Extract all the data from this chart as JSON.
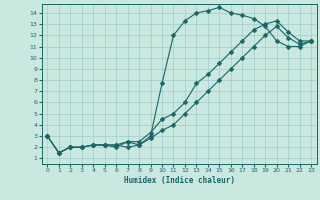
{
  "xlabel": "Humidex (Indice chaleur)",
  "x_ticks": [
    0,
    1,
    2,
    3,
    4,
    5,
    6,
    7,
    8,
    9,
    10,
    11,
    12,
    13,
    14,
    15,
    16,
    17,
    18,
    19,
    20,
    21,
    22,
    23
  ],
  "y_ticks": [
    1,
    2,
    3,
    4,
    5,
    6,
    7,
    8,
    9,
    10,
    11,
    12,
    13,
    14
  ],
  "xlim": [
    -0.5,
    23.5
  ],
  "ylim": [
    0.5,
    14.8
  ],
  "bg_color": "#c8e8e0",
  "grid_color": "#a0cccc",
  "line_color": "#1a6666",
  "curve1_x": [
    0,
    1,
    2,
    3,
    4,
    5,
    6,
    7,
    8,
    9,
    10,
    11,
    12,
    13,
    14,
    15,
    16,
    17,
    18,
    19,
    20,
    21,
    22,
    23
  ],
  "curve1_y": [
    3.0,
    1.5,
    2.0,
    2.0,
    2.2,
    2.2,
    2.0,
    2.5,
    2.2,
    3.0,
    7.7,
    12.0,
    13.3,
    14.0,
    14.2,
    14.5,
    14.0,
    13.8,
    13.5,
    12.8,
    11.5,
    11.0,
    11.0,
    11.5
  ],
  "curve2_x": [
    0,
    1,
    2,
    3,
    4,
    5,
    6,
    7,
    8,
    9,
    10,
    11,
    12,
    13,
    14,
    15,
    16,
    17,
    18,
    19,
    20,
    21,
    22,
    23
  ],
  "curve2_y": [
    3.0,
    1.5,
    2.0,
    2.0,
    2.2,
    2.2,
    2.2,
    2.5,
    2.5,
    3.3,
    4.5,
    5.0,
    6.0,
    7.7,
    8.5,
    9.5,
    10.5,
    11.5,
    12.5,
    13.0,
    13.3,
    12.3,
    11.5,
    11.5
  ],
  "curve3_x": [
    0,
    1,
    2,
    3,
    4,
    5,
    6,
    7,
    8,
    9,
    10,
    11,
    12,
    13,
    14,
    15,
    16,
    17,
    18,
    19,
    20,
    21,
    22,
    23
  ],
  "curve3_y": [
    3.0,
    1.5,
    2.0,
    2.0,
    2.2,
    2.2,
    2.2,
    2.0,
    2.2,
    2.8,
    3.5,
    4.0,
    5.0,
    6.0,
    7.0,
    8.0,
    9.0,
    10.0,
    11.0,
    12.0,
    12.8,
    11.8,
    11.2,
    11.5
  ]
}
